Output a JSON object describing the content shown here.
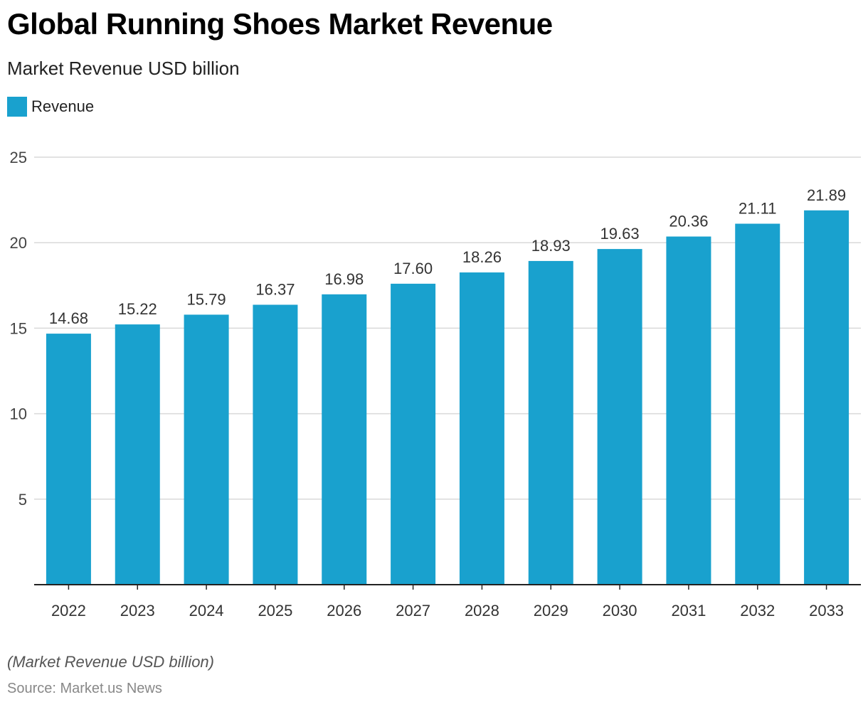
{
  "chart_data": {
    "type": "bar",
    "title": "Global Running Shoes Market Revenue",
    "subtitle": "Market Revenue USD billion",
    "categories": [
      "2022",
      "2023",
      "2024",
      "2025",
      "2026",
      "2027",
      "2028",
      "2029",
      "2030",
      "2031",
      "2032",
      "2033"
    ],
    "series": [
      {
        "name": "Revenue",
        "values": [
          14.68,
          15.22,
          15.79,
          16.37,
          16.98,
          17.6,
          18.26,
          18.93,
          19.63,
          20.36,
          21.11,
          21.89
        ],
        "labels": [
          "14.68",
          "15.22",
          "15.79",
          "16.37",
          "16.98",
          "17.60",
          "18.26",
          "18.93",
          "19.63",
          "20.36",
          "21.11",
          "21.89"
        ],
        "color": "#19a1ce"
      }
    ],
    "yticks": [
      "5",
      "10",
      "15",
      "20",
      "25"
    ],
    "ylim": [
      0,
      25
    ],
    "grid": true,
    "legend_position": "top-left",
    "xlabel": "",
    "ylabel": ""
  },
  "footnote": "(Market Revenue USD billion)",
  "source": "Source: Market.us News",
  "colors": {
    "bar": "#19a1ce",
    "grid": "#d9d9d9",
    "axis": "#222222"
  }
}
